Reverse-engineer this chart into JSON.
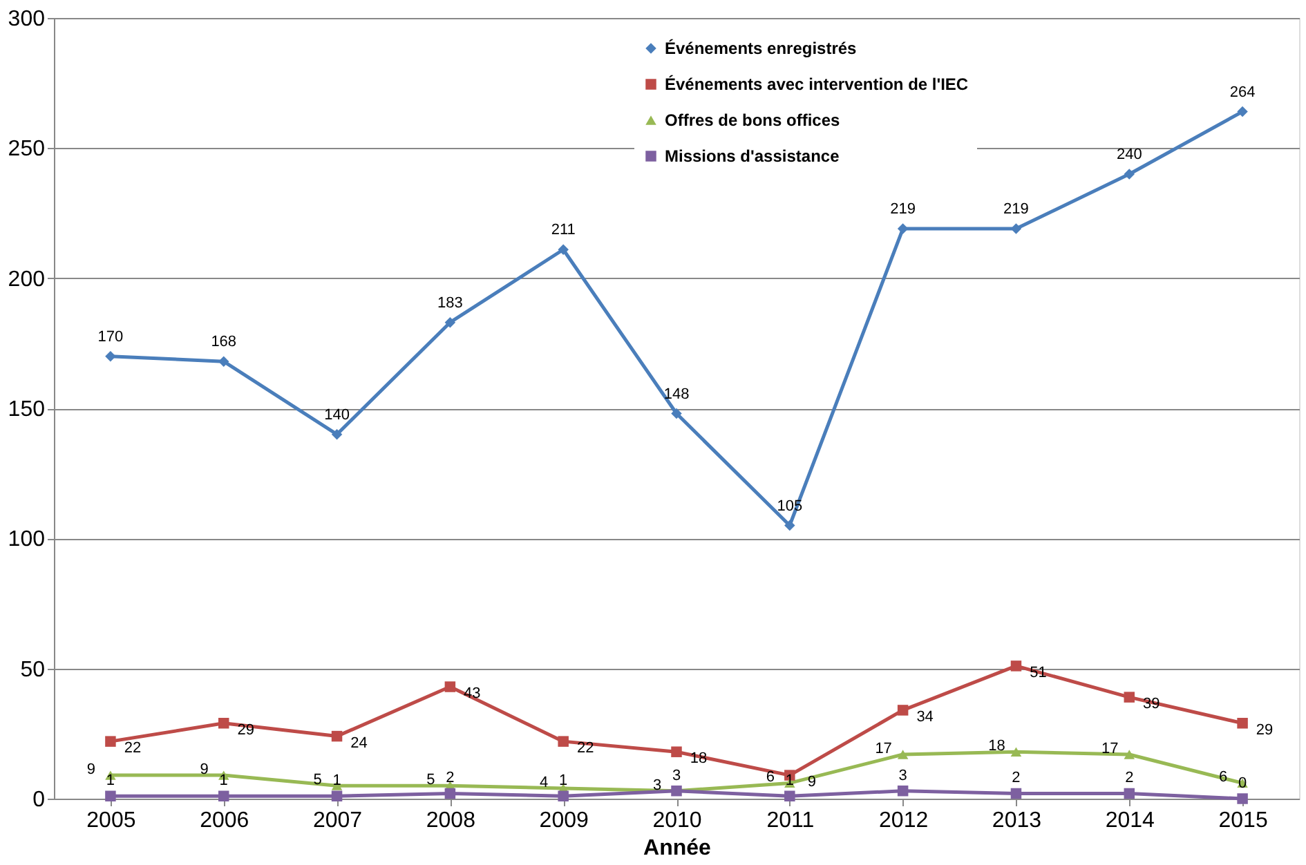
{
  "chart_data": {
    "type": "line",
    "xlabel": "Année",
    "categories": [
      "2005",
      "2006",
      "2007",
      "2008",
      "2009",
      "2010",
      "2011",
      "2012",
      "2013",
      "2014",
      "2015"
    ],
    "series": [
      {
        "name": "Événements enregistrés",
        "color": "#4a7ebb",
        "marker": "diamond",
        "values": [
          170,
          168,
          140,
          183,
          211,
          148,
          105,
          219,
          219,
          240,
          264
        ]
      },
      {
        "name": "Événements avec intervention de l'IEC",
        "color": "#be4b48",
        "marker": "square",
        "values": [
          22,
          29,
          24,
          43,
          22,
          18,
          9,
          34,
          51,
          39,
          29
        ]
      },
      {
        "name": "Offres de bons offices",
        "color": "#98b954",
        "marker": "triangle",
        "values": [
          9,
          9,
          5,
          5,
          4,
          3,
          6,
          17,
          18,
          17,
          6
        ]
      },
      {
        "name": "Missions d'assistance",
        "color": "#7d60a0",
        "marker": "square",
        "values": [
          1,
          1,
          1,
          2,
          1,
          3,
          1,
          3,
          2,
          2,
          0
        ]
      }
    ],
    "ylim": [
      0,
      300
    ],
    "yticks": [
      0,
      50,
      100,
      150,
      200,
      250,
      300
    ],
    "grid": "y",
    "legend": "top",
    "data_labels": true,
    "line_style": "solid"
  }
}
